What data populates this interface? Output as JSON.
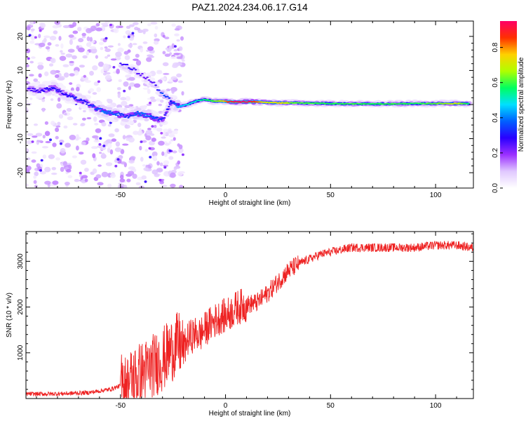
{
  "figure": {
    "title": "PAZ1.2024.234.06.17.G14"
  },
  "chart_data": [
    {
      "type": "heatmap",
      "title": "PAZ1.2024.234.06.17.G14",
      "xlabel": "Height of straight line (km)",
      "ylabel": "Frequency (Hz)",
      "xlim": [
        -95,
        118
      ],
      "ylim": [
        -24.5,
        24.5
      ],
      "xticks": [
        -50,
        0,
        50,
        100
      ],
      "yticks": [
        -20,
        -10,
        0,
        10,
        20
      ],
      "colorbar": {
        "label": "Normalized spectral amplitude",
        "range": [
          0,
          0.95
        ],
        "ticks": [
          0.0,
          0.2,
          0.4,
          0.6,
          0.8
        ],
        "tick_labels": [
          "0.0",
          "0.2",
          "0.4",
          "0.6",
          "0.8"
        ],
        "colormap": [
          "#ffffff",
          "#e0c8ff",
          "#9b30ff",
          "#2a00ff",
          "#0060ff",
          "#00e0ff",
          "#00ff60",
          "#b0ff00",
          "#ffd000",
          "#ff3000",
          "#ff0066"
        ]
      },
      "main_trace": [
        {
          "x": -94,
          "y": 4.5,
          "a": 0.25
        },
        {
          "x": -88,
          "y": 4.0,
          "a": 0.28
        },
        {
          "x": -82,
          "y": 5.0,
          "a": 0.3
        },
        {
          "x": -78,
          "y": 3.5,
          "a": 0.28
        },
        {
          "x": -74,
          "y": 2.5,
          "a": 0.3
        },
        {
          "x": -70,
          "y": 1.5,
          "a": 0.32
        },
        {
          "x": -66,
          "y": 0.5,
          "a": 0.3
        },
        {
          "x": -62,
          "y": -1.0,
          "a": 0.35
        },
        {
          "x": -58,
          "y": -2.0,
          "a": 0.4
        },
        {
          "x": -54,
          "y": -2.5,
          "a": 0.38
        },
        {
          "x": -50,
          "y": -3.0,
          "a": 0.35
        },
        {
          "x": -46,
          "y": -3.5,
          "a": 0.32
        },
        {
          "x": -42,
          "y": -2.5,
          "a": 0.38
        },
        {
          "x": -38,
          "y": -3.0,
          "a": 0.4
        },
        {
          "x": -34,
          "y": -4.0,
          "a": 0.35
        },
        {
          "x": -30,
          "y": -4.5,
          "a": 0.32
        },
        {
          "x": -26,
          "y": 0.5,
          "a": 0.3
        },
        {
          "x": -22,
          "y": -0.5,
          "a": 0.45
        },
        {
          "x": -18,
          "y": 0.0,
          "a": 0.5
        },
        {
          "x": -14,
          "y": 1.0,
          "a": 0.5
        },
        {
          "x": -10,
          "y": 1.5,
          "a": 0.55
        },
        {
          "x": -6,
          "y": 1.0,
          "a": 0.6
        },
        {
          "x": -2,
          "y": 1.0,
          "a": 0.7
        },
        {
          "x": 2,
          "y": 0.8,
          "a": 0.9
        },
        {
          "x": 6,
          "y": 0.8,
          "a": 0.92
        },
        {
          "x": 10,
          "y": 0.8,
          "a": 0.95
        },
        {
          "x": 14,
          "y": 0.8,
          "a": 0.85
        },
        {
          "x": 20,
          "y": 0.6,
          "a": 0.7
        },
        {
          "x": 26,
          "y": 0.5,
          "a": 0.75
        },
        {
          "x": 32,
          "y": 0.5,
          "a": 0.62
        },
        {
          "x": 40,
          "y": 0.4,
          "a": 0.6
        },
        {
          "x": 50,
          "y": 0.3,
          "a": 0.58
        },
        {
          "x": 60,
          "y": 0.2,
          "a": 0.6
        },
        {
          "x": 70,
          "y": 0.2,
          "a": 0.58
        },
        {
          "x": 80,
          "y": 0.2,
          "a": 0.6
        },
        {
          "x": 90,
          "y": 0.3,
          "a": 0.58
        },
        {
          "x": 100,
          "y": 0.3,
          "a": 0.62
        },
        {
          "x": 110,
          "y": 0.3,
          "a": 0.7
        },
        {
          "x": 116,
          "y": 0.3,
          "a": 0.55
        }
      ],
      "secondary_trace": [
        {
          "x": -50,
          "y": 12.0,
          "a": 0.3
        },
        {
          "x": -46,
          "y": 11.0,
          "a": 0.32
        },
        {
          "x": -42,
          "y": 9.5,
          "a": 0.28
        },
        {
          "x": -38,
          "y": 8.0,
          "a": 0.25
        },
        {
          "x": -34,
          "y": 6.0,
          "a": 0.28
        },
        {
          "x": -30,
          "y": 3.0,
          "a": 0.4
        },
        {
          "x": -26,
          "y": 1.0,
          "a": 0.35
        }
      ]
    },
    {
      "type": "line",
      "xlabel": "Height of straight line (km)",
      "ylabel": "SNR (10 * v/v)",
      "xlim": [
        -95,
        118
      ],
      "ylim": [
        0,
        3650
      ],
      "xticks": [
        -50,
        0,
        50,
        100
      ],
      "yticks": [
        1000,
        2000,
        3000
      ],
      "color": "#ee2222",
      "series": [
        {
          "x": [
            -95,
            -85,
            -75,
            -65,
            -55,
            -50,
            -45,
            -42,
            -38,
            -35,
            -32,
            -30,
            -28,
            -25,
            -22,
            -20,
            -18,
            -15,
            -12,
            -10,
            -8,
            -5,
            -2,
            0,
            3,
            6,
            10,
            15,
            20,
            25,
            30,
            35,
            40,
            45,
            50,
            55,
            60,
            70,
            80,
            90,
            100,
            110,
            117
          ],
          "values": [
            100,
            100,
            110,
            130,
            200,
            280,
            400,
            500,
            600,
            700,
            800,
            850,
            950,
            1100,
            1200,
            1050,
            1300,
            1400,
            1400,
            1500,
            1600,
            1700,
            1800,
            1800,
            1900,
            2000,
            2050,
            2100,
            2300,
            2550,
            2800,
            2950,
            3050,
            3150,
            3200,
            3250,
            3300,
            3300,
            3300,
            3300,
            3350,
            3350,
            3300
          ]
        }
      ]
    }
  ]
}
